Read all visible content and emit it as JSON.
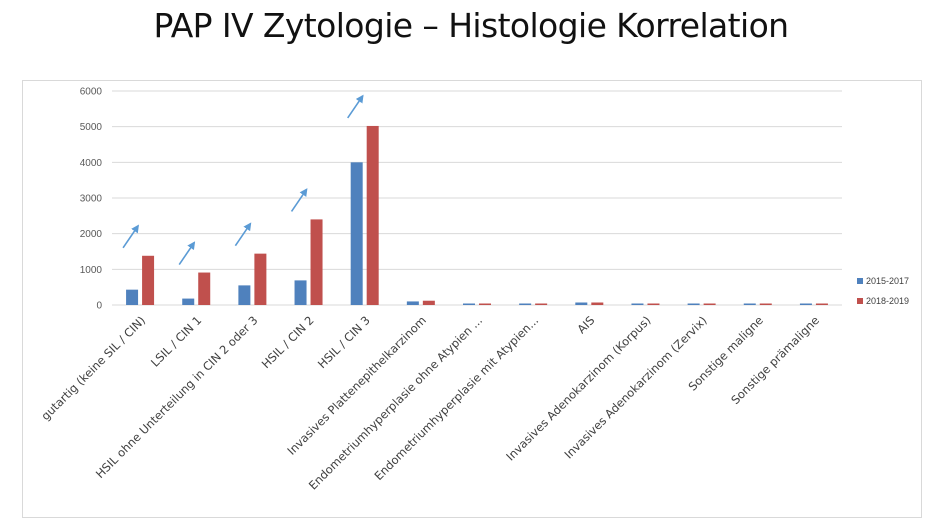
{
  "title": "PAP IV Zytologie – Histologie Korrelation",
  "chart_data": {
    "type": "bar",
    "title": "",
    "xlabel": "",
    "ylabel": "",
    "ylim": [
      0,
      6000
    ],
    "yticks": [
      0,
      1000,
      2000,
      3000,
      4000,
      5000,
      6000
    ],
    "grid": true,
    "legend_position": "right",
    "categories": [
      "gutartig (keine SIL / CIN)",
      "LSIL / CIN 1",
      "HSIL ohne Unterteilung in CIN 2 oder 3",
      "HSIL / CIN 2",
      "HSIL / CIN 3",
      "Invasives Plattenepithelkarzinom",
      "Endometriumhyperplasie ohne Atypien ...",
      "Endometriumhyperplasie mit Atypien...",
      "AIS",
      "Invasives Adenokarzinom (Korpus)",
      "Invasives Adenokarzinom (Zervix)",
      "Sonstige maligne",
      "Sonstige prämaligne"
    ],
    "series": [
      {
        "name": "2015-2017",
        "color": "#4f81bd",
        "values": [
          430,
          180,
          550,
          690,
          4000,
          100,
          20,
          15,
          70,
          15,
          15,
          15,
          20
        ]
      },
      {
        "name": "2018-2019",
        "color": "#c0504d",
        "values": [
          1380,
          910,
          1440,
          2400,
          5020,
          120,
          25,
          10,
          70,
          15,
          15,
          20,
          40
        ]
      }
    ],
    "annotations": {
      "arrows_on_categories": [
        0,
        1,
        2,
        3,
        4
      ],
      "arrow_color": "#5b9bd5",
      "arrow_icon": "up-right-arrow-icon"
    }
  }
}
